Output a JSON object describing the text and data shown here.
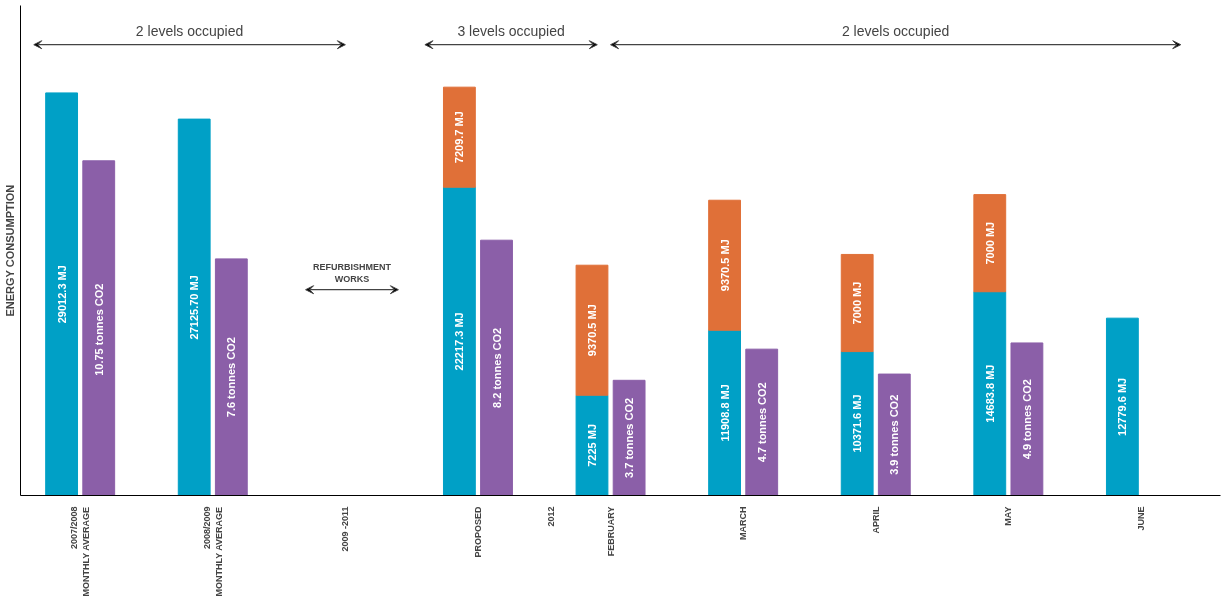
{
  "chart_data": {
    "type": "bar",
    "stacked": true,
    "ylabel": "ENERGY CONSUMPTION",
    "categories": [
      "2007/2008\nMONTHLY AVERAGE",
      "2008/2009\nMONTHLY AVERAGE",
      "2009 -2011",
      "PROPOSED",
      "FEBRUARY",
      "MARCH",
      "APRIL",
      "MAY",
      "JUNE"
    ],
    "series": [
      {
        "color": "#00a0c6",
        "values": [
          29012.3,
          27125.7,
          null,
          22217.3,
          7225,
          11908.8,
          10371.6,
          14683.8,
          12779.6
        ],
        "value_labels": [
          "29012.3 MJ",
          "27125.70 MJ",
          null,
          "22217.3 MJ",
          "7225 MJ",
          "11908.8 MJ",
          "10371.6 MJ",
          "14683.8 MJ",
          "12779.6 MJ"
        ]
      },
      {
        "color": "#e07038",
        "values": [
          null,
          null,
          null,
          7209.7,
          9370.5,
          9370.5,
          7000,
          7000,
          null
        ],
        "value_labels": [
          null,
          null,
          null,
          "7209.7 MJ",
          "9370.5 MJ",
          "9370.5 MJ",
          "7000 MJ",
          "7000 MJ",
          null
        ]
      },
      {
        "color": "#8b5fa8",
        "axis": "y2",
        "values": [
          10.75,
          7.6,
          null,
          8.2,
          3.7,
          4.7,
          3.9,
          4.9,
          null
        ],
        "value_labels": [
          "10.75  tonnes CO2",
          "7.6 tonnes CO2",
          null,
          "8.2 tonnes CO2",
          "3.7 tonnes CO2",
          "4.7 tonnes CO2",
          "3.9 tonnes CO2",
          "4.9 tonnes CO2",
          null
        ]
      }
    ],
    "annotations": [
      "2 levels occupied",
      "3 levels occupied",
      "2 levels occupied",
      "REFURBISHMENT\nWORKS",
      "2012"
    ],
    "grid": false
  }
}
